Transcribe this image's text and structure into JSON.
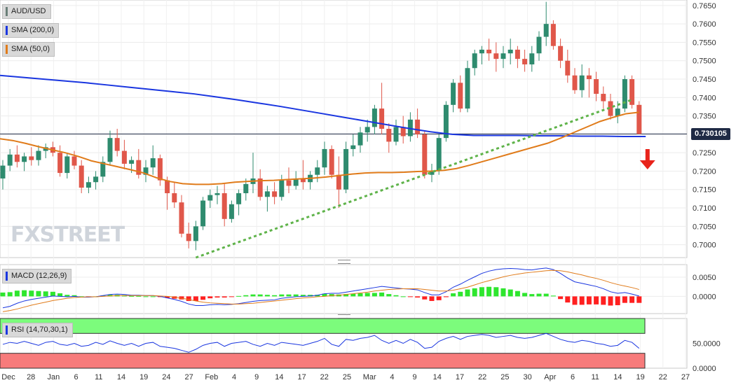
{
  "legend": {
    "symbol": "AUD/USD",
    "sma200": "SMA (200,0)",
    "sma50": "SMA (50,0)",
    "macd": "MACD (12,26,9)",
    "rsi": "RSI (14,70,30,1)"
  },
  "colors": {
    "up": "#2e8b6e",
    "down": "#e0574a",
    "sma200": "#1a36e0",
    "sma50": "#e07b1a",
    "trendline": "#5fb34a",
    "macd_line": "#1a36e0",
    "signal_line": "#e07b1a",
    "hist_pos": "#2ee62e",
    "hist_neg": "#ff2020",
    "rsi_over": "#7cfc7c",
    "rsi_under": "#f77b7b",
    "arrow": "#e8231a"
  },
  "price_tag": "0.730105",
  "logo": {
    "fx": "FX",
    "street": "STREET"
  },
  "chart_data": {
    "type": "candlestick",
    "price_ticks": [
      "0.7650",
      "0.7600",
      "0.7550",
      "0.7500",
      "0.7450",
      "0.7400",
      "0.7350",
      "0.7300",
      "0.7250",
      "0.7200",
      "0.7150",
      "0.7100",
      "0.7050",
      "0.7000"
    ],
    "price_ylim": [
      0.6965,
      0.7665
    ],
    "current_price": 0.730105,
    "macd_ticks": [
      "0.0050",
      "0.0000"
    ],
    "macd_ylim": [
      -0.0045,
      0.0083
    ],
    "rsi_ticks": [
      "50.0000",
      "0.0000"
    ],
    "rsi_ylim": [
      0,
      100
    ],
    "x_labels": [
      "Dec",
      "28",
      "Jan",
      "6",
      "11",
      "14",
      "19",
      "24",
      "27",
      "Feb",
      "4",
      "9",
      "14",
      "17",
      "22",
      "25",
      "Mar",
      "4",
      "9",
      "14",
      "17",
      "22",
      "25",
      "30",
      "Apr",
      "6",
      "11",
      "14",
      "19",
      "22",
      "27"
    ],
    "candles": [
      [
        0.718,
        0.723,
        0.715,
        0.7215
      ],
      [
        0.7215,
        0.726,
        0.72,
        0.7245
      ],
      [
        0.7245,
        0.727,
        0.721,
        0.7225
      ],
      [
        0.7225,
        0.725,
        0.72,
        0.724
      ],
      [
        0.724,
        0.7265,
        0.7215,
        0.723
      ],
      [
        0.723,
        0.727,
        0.7215,
        0.7255
      ],
      [
        0.7255,
        0.7275,
        0.7235,
        0.7265
      ],
      [
        0.7265,
        0.728,
        0.724,
        0.725
      ],
      [
        0.725,
        0.727,
        0.7185,
        0.7195
      ],
      [
        0.7195,
        0.725,
        0.718,
        0.724
      ],
      [
        0.724,
        0.7255,
        0.7205,
        0.7215
      ],
      [
        0.7215,
        0.723,
        0.714,
        0.7155
      ],
      [
        0.7155,
        0.7185,
        0.714,
        0.717
      ],
      [
        0.717,
        0.72,
        0.715,
        0.7185
      ],
      [
        0.7185,
        0.724,
        0.717,
        0.7225
      ],
      [
        0.7225,
        0.731,
        0.7215,
        0.729
      ],
      [
        0.729,
        0.7315,
        0.724,
        0.7255
      ],
      [
        0.7255,
        0.7285,
        0.7205,
        0.722
      ],
      [
        0.722,
        0.724,
        0.7195,
        0.723
      ],
      [
        0.723,
        0.726,
        0.718,
        0.719
      ],
      [
        0.719,
        0.723,
        0.717,
        0.721
      ],
      [
        0.721,
        0.727,
        0.719,
        0.7235
      ],
      [
        0.7235,
        0.7245,
        0.716,
        0.7175
      ],
      [
        0.7175,
        0.7185,
        0.7095,
        0.714
      ],
      [
        0.714,
        0.717,
        0.71,
        0.7115
      ],
      [
        0.7115,
        0.7135,
        0.702,
        0.703
      ],
      [
        0.703,
        0.706,
        0.699,
        0.701
      ],
      [
        0.701,
        0.7065,
        0.6985,
        0.705
      ],
      [
        0.705,
        0.713,
        0.704,
        0.712
      ],
      [
        0.712,
        0.715,
        0.71,
        0.7135
      ],
      [
        0.7135,
        0.716,
        0.711,
        0.714
      ],
      [
        0.714,
        0.7165,
        0.705,
        0.707
      ],
      [
        0.707,
        0.712,
        0.706,
        0.711
      ],
      [
        0.711,
        0.715,
        0.708,
        0.714
      ],
      [
        0.714,
        0.718,
        0.712,
        0.7165
      ],
      [
        0.7165,
        0.725,
        0.714,
        0.718
      ],
      [
        0.718,
        0.7205,
        0.712,
        0.713
      ],
      [
        0.713,
        0.716,
        0.709,
        0.7145
      ],
      [
        0.7145,
        0.717,
        0.711,
        0.713
      ],
      [
        0.713,
        0.719,
        0.712,
        0.7175
      ],
      [
        0.7175,
        0.721,
        0.714,
        0.716
      ],
      [
        0.716,
        0.72,
        0.715,
        0.718
      ],
      [
        0.718,
        0.723,
        0.715,
        0.717
      ],
      [
        0.717,
        0.72,
        0.715,
        0.719
      ],
      [
        0.719,
        0.723,
        0.717,
        0.721
      ],
      [
        0.721,
        0.728,
        0.719,
        0.726
      ],
      [
        0.726,
        0.727,
        0.718,
        0.719
      ],
      [
        0.719,
        0.724,
        0.71,
        0.715
      ],
      [
        0.715,
        0.728,
        0.714,
        0.726
      ],
      [
        0.726,
        0.73,
        0.724,
        0.727
      ],
      [
        0.727,
        0.732,
        0.725,
        0.7305
      ],
      [
        0.7305,
        0.734,
        0.728,
        0.732
      ],
      [
        0.732,
        0.738,
        0.73,
        0.737
      ],
      [
        0.737,
        0.744,
        0.73,
        0.7315
      ],
      [
        0.7315,
        0.733,
        0.725,
        0.728
      ],
      [
        0.728,
        0.734,
        0.727,
        0.732
      ],
      [
        0.732,
        0.735,
        0.7275,
        0.7295
      ],
      [
        0.7295,
        0.736,
        0.728,
        0.734
      ],
      [
        0.734,
        0.737,
        0.729,
        0.73
      ],
      [
        0.73,
        0.731,
        0.718,
        0.719
      ],
      [
        0.719,
        0.722,
        0.717,
        0.72
      ],
      [
        0.72,
        0.73,
        0.719,
        0.729
      ],
      [
        0.729,
        0.739,
        0.728,
        0.738
      ],
      [
        0.738,
        0.745,
        0.736,
        0.744
      ],
      [
        0.744,
        0.746,
        0.736,
        0.737
      ],
      [
        0.737,
        0.75,
        0.736,
        0.748
      ],
      [
        0.748,
        0.753,
        0.746,
        0.752
      ],
      [
        0.752,
        0.754,
        0.749,
        0.753
      ],
      [
        0.753,
        0.756,
        0.75,
        0.752
      ],
      [
        0.752,
        0.755,
        0.747,
        0.7505
      ],
      [
        0.7505,
        0.754,
        0.748,
        0.752
      ],
      [
        0.752,
        0.756,
        0.749,
        0.753
      ],
      [
        0.753,
        0.754,
        0.748,
        0.7505
      ],
      [
        0.7505,
        0.753,
        0.747,
        0.749
      ],
      [
        0.749,
        0.754,
        0.747,
        0.752
      ],
      [
        0.752,
        0.758,
        0.75,
        0.7565
      ],
      [
        0.7565,
        0.766,
        0.754,
        0.76
      ],
      [
        0.76,
        0.761,
        0.753,
        0.754
      ],
      [
        0.754,
        0.756,
        0.748,
        0.75
      ],
      [
        0.75,
        0.753,
        0.744,
        0.746
      ],
      [
        0.746,
        0.748,
        0.741,
        0.742
      ],
      [
        0.742,
        0.749,
        0.74,
        0.746
      ],
      [
        0.746,
        0.748,
        0.74,
        0.745
      ],
      [
        0.745,
        0.747,
        0.739,
        0.741
      ],
      [
        0.741,
        0.743,
        0.737,
        0.739
      ],
      [
        0.739,
        0.741,
        0.734,
        0.735
      ],
      [
        0.735,
        0.739,
        0.733,
        0.737
      ],
      [
        0.737,
        0.746,
        0.736,
        0.745
      ],
      [
        0.745,
        0.746,
        0.737,
        0.738
      ],
      [
        0.738,
        0.739,
        0.73,
        0.7301
      ]
    ],
    "sma200": [
      0.746,
      0.7455,
      0.745,
      0.7445,
      0.744,
      0.7434,
      0.7428,
      0.7422,
      0.7416,
      0.741,
      0.7402,
      0.7394,
      0.7385,
      0.7376,
      0.7366,
      0.7356,
      0.7346,
      0.7336,
      0.7326,
      0.7316,
      0.7307,
      0.73,
      0.7297,
      0.7297,
      0.7297,
      0.7296,
      0.7296,
      0.7295,
      0.7295,
      0.7294,
      0.7294
    ],
    "sma50": [
      0.7288,
      0.7283,
      0.7275,
      0.7266,
      0.7258,
      0.725,
      0.724,
      0.7228,
      0.722,
      0.7212,
      0.7204,
      0.7195,
      0.7182,
      0.7172,
      0.7166,
      0.7164,
      0.7164,
      0.7166,
      0.717,
      0.7172,
      0.7174,
      0.7175,
      0.7177,
      0.7179,
      0.7181,
      0.7184,
      0.7188,
      0.7192,
      0.7195,
      0.7196,
      0.7196,
      0.7197,
      0.7199,
      0.72,
      0.7202,
      0.7207,
      0.7216,
      0.7226,
      0.7236,
      0.7246,
      0.7256,
      0.7266,
      0.7276,
      0.729,
      0.7305,
      0.732,
      0.7335,
      0.7346,
      0.7356,
      0.736
    ],
    "trendline": [
      [
        27,
        0.6965
      ],
      [
        88,
        0.7394
      ]
    ],
    "macd": [
      -0.003,
      -0.0026,
      -0.0018,
      -0.0012,
      -0.0008,
      -0.0005,
      -0.0002,
      0.0001,
      0.0,
      -0.0001,
      0.0,
      -0.0002,
      -0.0002,
      -0.0001,
      0.0002,
      0.0005,
      0.0006,
      0.0005,
      0.0003,
      0.0003,
      0.0002,
      0.0002,
      0.0,
      -0.0004,
      -0.0008,
      -0.0013,
      -0.002,
      -0.0024,
      -0.0024,
      -0.0022,
      -0.0021,
      -0.0022,
      -0.0021,
      -0.0019,
      -0.0016,
      -0.0013,
      -0.0011,
      -0.001,
      -0.0009,
      -0.0005,
      -0.0003,
      -0.0001,
      0.0,
      0.0001,
      0.0003,
      0.0007,
      0.0008,
      0.0008,
      0.0011,
      0.0014,
      0.0017,
      0.002,
      0.0023,
      0.0026,
      0.0024,
      0.0022,
      0.002,
      0.0019,
      0.0017,
      0.001,
      0.0004,
      0.0004,
      0.0012,
      0.0024,
      0.0032,
      0.0042,
      0.0051,
      0.006,
      0.0066,
      0.007,
      0.0072,
      0.0073,
      0.0072,
      0.007,
      0.0069,
      0.0072,
      0.0074,
      0.007,
      0.006,
      0.0048,
      0.0038,
      0.0034,
      0.003,
      0.0026,
      0.002,
      0.0012,
      0.0008,
      0.001,
      0.0006,
      0.0001
    ],
    "signal": [
      -0.004,
      -0.0037,
      -0.0033,
      -0.0028,
      -0.0023,
      -0.0019,
      -0.0015,
      -0.0011,
      -0.0008,
      -0.0005,
      -0.0003,
      -0.0002,
      -0.0001,
      -0.0001,
      0.0,
      0.0001,
      0.0002,
      0.0002,
      0.0002,
      0.0002,
      0.0002,
      0.0002,
      0.0001,
      0.0,
      -0.0002,
      -0.0005,
      -0.0008,
      -0.0012,
      -0.0015,
      -0.0017,
      -0.0018,
      -0.0019,
      -0.002,
      -0.002,
      -0.0019,
      -0.0018,
      -0.0016,
      -0.0014,
      -0.0012,
      -0.001,
      -0.0008,
      -0.0006,
      -0.0004,
      -0.0003,
      -0.0001,
      0.0,
      0.0002,
      0.0003,
      0.0005,
      0.0007,
      0.0009,
      0.0011,
      0.0014,
      0.0016,
      0.0018,
      0.0019,
      0.002,
      0.002,
      0.002,
      0.0018,
      0.0016,
      0.0014,
      0.0014,
      0.0016,
      0.002,
      0.0024,
      0.003,
      0.0036,
      0.0041,
      0.0046,
      0.0051,
      0.0055,
      0.0058,
      0.0061,
      0.0063,
      0.0065,
      0.0067,
      0.0068,
      0.0067,
      0.0064,
      0.006,
      0.0056,
      0.0051,
      0.0047,
      0.0042,
      0.0036,
      0.0031,
      0.0027,
      0.0023,
      0.0018
    ],
    "rsi": [
      48,
      52,
      50,
      54,
      50,
      46,
      52,
      54,
      48,
      46,
      50,
      44,
      46,
      52,
      48,
      55,
      50,
      46,
      50,
      44,
      50,
      52,
      44,
      42,
      40,
      36,
      32,
      38,
      46,
      50,
      52,
      44,
      50,
      52,
      54,
      48,
      44,
      50,
      46,
      52,
      50,
      48,
      46,
      50,
      54,
      60,
      48,
      44,
      58,
      56,
      60,
      62,
      66,
      56,
      50,
      56,
      50,
      58,
      52,
      40,
      42,
      54,
      60,
      64,
      58,
      64,
      66,
      68,
      66,
      62,
      64,
      66,
      62,
      60,
      62,
      66,
      70,
      64,
      58,
      54,
      52,
      56,
      54,
      50,
      48,
      44,
      46,
      56,
      52,
      40
    ]
  }
}
